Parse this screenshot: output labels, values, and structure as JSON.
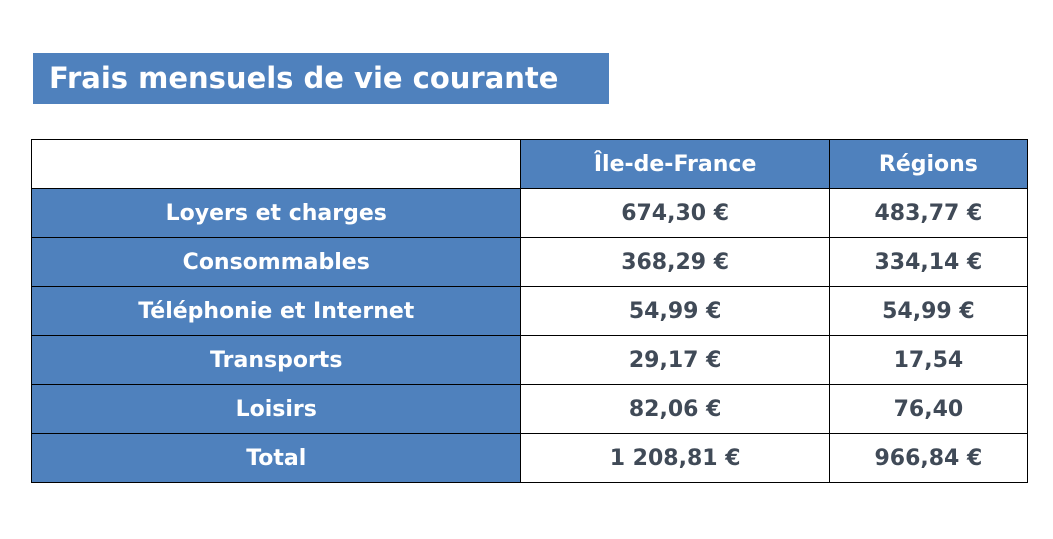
{
  "title": "Frais mensuels de vie courante",
  "table": {
    "headers": [
      "",
      "Île-de-France",
      "Régions"
    ],
    "rows": [
      {
        "label": "Loyers et charges",
        "idf": "674,30 €",
        "regions": "483,77 €"
      },
      {
        "label": "Consommables",
        "idf": "368,29 €",
        "regions": "334,14 €"
      },
      {
        "label": "Téléphonie et Internet",
        "idf": "54,99 €",
        "regions": "54,99 €"
      },
      {
        "label": "Transports",
        "idf": "29,17 €",
        "regions": "17,54"
      },
      {
        "label": "Loisirs",
        "idf": "82,06 €",
        "regions": "76,40"
      },
      {
        "label": "Total",
        "idf": "1 208,81 €",
        "regions": "966,84 €"
      }
    ]
  },
  "colors": {
    "header_blue": "#4f81bd",
    "header_text": "#ffffff",
    "value_text": "#404a57",
    "border": "#000000"
  }
}
